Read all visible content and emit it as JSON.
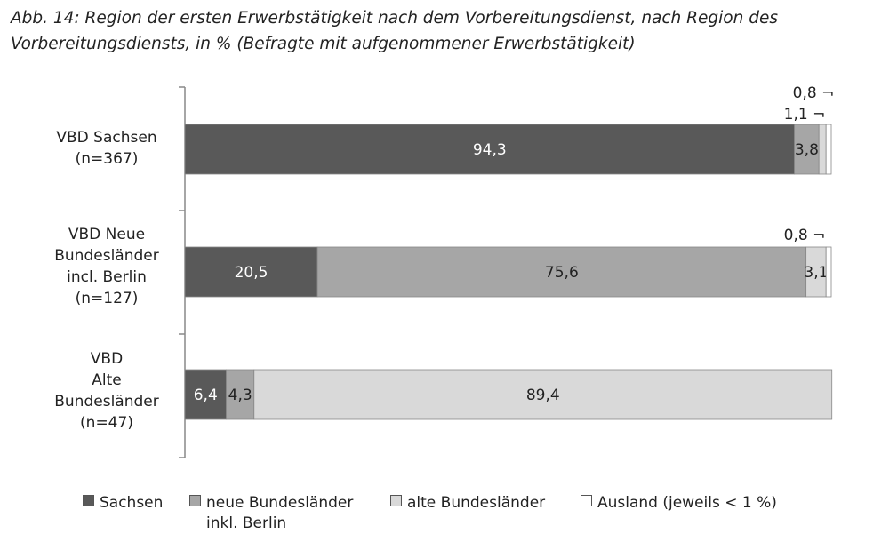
{
  "title": "Abb. 14: Region der ersten Erwerbstätigkeit nach dem Vorbereitungsdienst, nach Region des Vorbereitungsdiensts, in % (Befragte mit aufgenommener Erwerbstätigkeit)",
  "chart_data": {
    "type": "bar",
    "orientation": "horizontal",
    "stacked": true,
    "xlim": [
      0,
      100
    ],
    "grid": false,
    "legend_position": "bottom",
    "categories": [
      [
        "VBD Sachsen",
        "(n=367)"
      ],
      [
        "VBD Neue",
        "Bundesländer",
        "incl. Berlin",
        "(n=127)"
      ],
      [
        "VBD",
        "Alte",
        "Bundesländer",
        "(n=47)"
      ]
    ],
    "series": [
      {
        "name": "Sachsen",
        "color": "#595959",
        "values": [
          94.3,
          20.5,
          6.4
        ],
        "labels": [
          "94,3",
          "20,5",
          "6,4"
        ],
        "label_color": "#ffffff"
      },
      {
        "name": "neue Bundesländer\ninkl. Berlin",
        "color": "#a6a6a6",
        "values": [
          3.8,
          75.6,
          4.3
        ],
        "labels": [
          "3,8",
          "75,6",
          "4,3"
        ],
        "label_color": "#222222"
      },
      {
        "name": "alte Bundesländer",
        "color": "#d9d9d9",
        "values": [
          1.1,
          3.1,
          89.4
        ],
        "labels": [
          "1,1 ¬",
          "3,1",
          "89,4"
        ],
        "label_color": "#222222"
      },
      {
        "name": "Ausland (jeweils < 1 %)",
        "color": "#ffffff",
        "values": [
          0.8,
          0.8,
          0.0
        ],
        "labels": [
          "0,8 ¬",
          "0,8 ¬",
          ""
        ],
        "label_color": "#222222"
      }
    ],
    "callouts": [
      {
        "category": 0,
        "series": 3,
        "text": "0,8 ¬"
      },
      {
        "category": 0,
        "series": 2,
        "text": "1,1 ¬"
      },
      {
        "category": 1,
        "series": 3,
        "text": "0,8 ¬"
      }
    ]
  }
}
